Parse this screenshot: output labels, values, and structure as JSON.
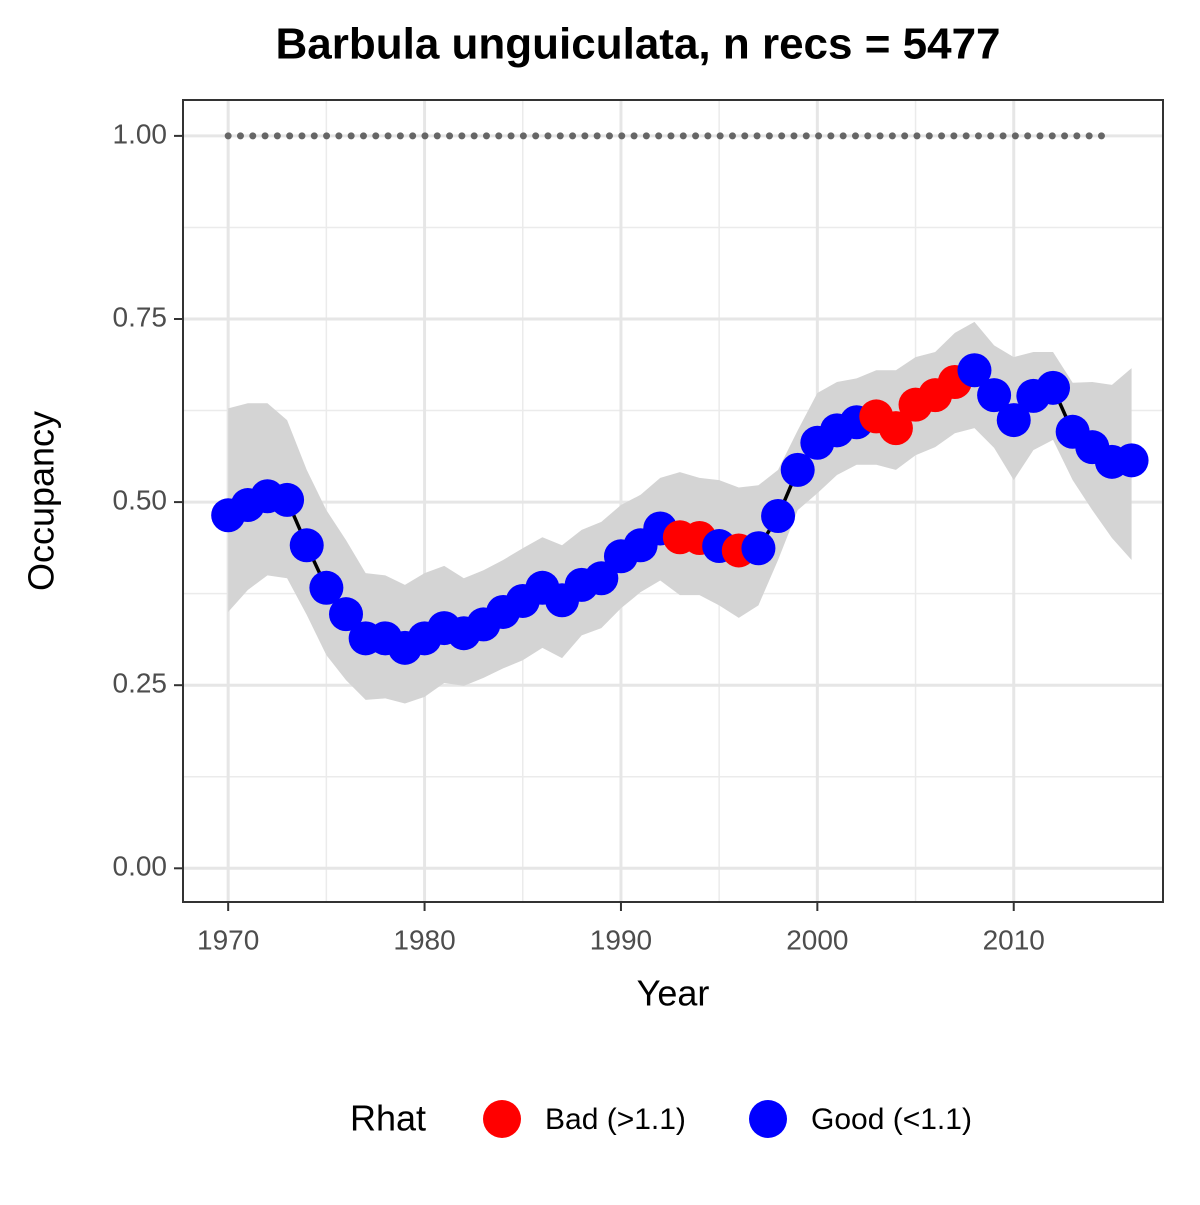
{
  "chart_data": {
    "type": "line",
    "title": "Barbula unguiculata, n recs = 5477",
    "x_label": "Year",
    "y_label": "Occupancy",
    "x": [
      1970,
      1971,
      1972,
      1973,
      1974,
      1975,
      1976,
      1977,
      1978,
      1979,
      1980,
      1981,
      1982,
      1983,
      1984,
      1985,
      1986,
      1987,
      1988,
      1989,
      1990,
      1991,
      1992,
      1993,
      1994,
      1995,
      1996,
      1997,
      1998,
      1999,
      2000,
      2001,
      2002,
      2003,
      2004,
      2005,
      2006,
      2007,
      2008,
      2009,
      2010,
      2011,
      2012,
      2013,
      2014,
      2015,
      2016
    ],
    "series": [
      {
        "name": "Bad (>1.1)",
        "color": "#ff0000",
        "values": [
          null,
          null,
          null,
          null,
          null,
          null,
          null,
          null,
          null,
          null,
          null,
          null,
          null,
          null,
          null,
          null,
          null,
          null,
          null,
          null,
          null,
          null,
          null,
          0.452,
          0.451,
          null,
          0.434,
          null,
          null,
          null,
          null,
          null,
          null,
          0.617,
          0.601,
          0.633,
          0.646,
          0.664,
          null,
          null,
          null,
          null,
          null,
          null,
          null,
          null,
          null
        ]
      },
      {
        "name": "Good (<1.1)",
        "color": "#0000ff",
        "values": [
          0.482,
          0.496,
          0.508,
          0.503,
          0.441,
          0.383,
          0.347,
          0.314,
          0.314,
          0.301,
          0.314,
          0.328,
          0.321,
          0.333,
          0.35,
          0.365,
          0.383,
          0.366,
          0.387,
          0.396,
          0.426,
          0.441,
          0.464,
          null,
          null,
          0.44,
          null,
          0.437,
          0.481,
          0.544,
          0.581,
          0.598,
          0.609,
          null,
          null,
          null,
          null,
          null,
          0.68,
          0.646,
          0.612,
          0.645,
          0.656,
          0.596,
          0.575,
          0.555,
          0.557
        ]
      }
    ],
    "upper": [
      0.628,
      0.635,
      0.635,
      0.612,
      0.544,
      0.489,
      0.448,
      0.403,
      0.4,
      0.387,
      0.403,
      0.413,
      0.396,
      0.407,
      0.421,
      0.437,
      0.452,
      0.441,
      0.462,
      0.473,
      0.496,
      0.51,
      0.533,
      0.541,
      0.533,
      0.53,
      0.52,
      0.523,
      0.544,
      0.598,
      0.649,
      0.664,
      0.669,
      0.68,
      0.68,
      0.698,
      0.705,
      0.731,
      0.746,
      0.714,
      0.698,
      0.705,
      0.705,
      0.663,
      0.664,
      0.66,
      0.683
    ],
    "lower": [
      0.35,
      0.38,
      0.4,
      0.396,
      0.346,
      0.291,
      0.257,
      0.23,
      0.232,
      0.225,
      0.234,
      0.253,
      0.249,
      0.26,
      0.273,
      0.284,
      0.301,
      0.287,
      0.318,
      0.328,
      0.355,
      0.377,
      0.393,
      0.373,
      0.373,
      0.359,
      0.342,
      0.359,
      0.421,
      0.489,
      0.512,
      0.537,
      0.551,
      0.551,
      0.544,
      0.564,
      0.575,
      0.594,
      0.601,
      0.574,
      0.53,
      0.571,
      0.585,
      0.53,
      0.489,
      0.451,
      0.421
    ],
    "band_color": "#d4d4d4",
    "line_color": "#000000",
    "reference_line": {
      "value": 1,
      "x": [
        1970,
        2015
      ],
      "color": "#666666"
    },
    "legend_title": "Rhat",
    "legend_position": "bottom",
    "xlim": [
      1967.7,
      2017.6
    ],
    "ylim": [
      -0.046,
      1.049
    ],
    "xticks": [
      1970,
      1980,
      1990,
      2000,
      2010
    ],
    "yticks": [
      {
        "value": 0,
        "label": "0.00"
      },
      {
        "value": 0.25,
        "label": "0.25"
      },
      {
        "value": 0.5,
        "label": "0.50"
      },
      {
        "value": 0.75,
        "label": "0.75"
      },
      {
        "value": 1,
        "label": "1.00"
      }
    ],
    "grid": true
  }
}
